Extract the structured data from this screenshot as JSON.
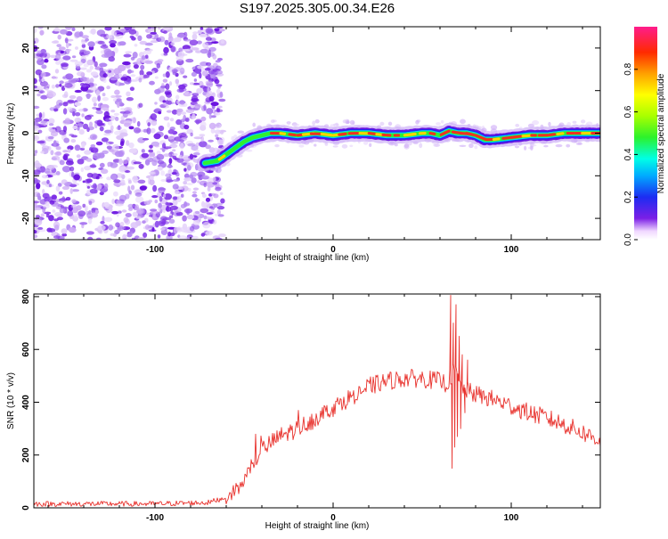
{
  "title": "S197.2025.305.00.34.E26",
  "chart_data": [
    {
      "type": "heatmap",
      "xlabel": "Height of straight line (km)",
      "ylabel": "Frequency (Hz)",
      "xlim": [
        -168,
        150
      ],
      "ylim": [
        -25,
        25
      ],
      "x_ticks": [
        -100,
        0,
        100
      ],
      "y_ticks": [
        -20,
        -10,
        0,
        10,
        20
      ],
      "noise_region_x": [
        -168,
        -65
      ],
      "ridge": {
        "x": [
          -72,
          -65,
          -60,
          -55,
          -50,
          -45,
          -40,
          -35,
          -30,
          -20,
          -10,
          0,
          10,
          20,
          30,
          40,
          50,
          55,
          60,
          65,
          70,
          75,
          80,
          85,
          90,
          100,
          110,
          120,
          130,
          140,
          150
        ],
        "freq": [
          -7,
          -6.5,
          -5,
          -3.5,
          -2,
          -1,
          -0.5,
          0,
          0,
          -0.5,
          0,
          -0.5,
          0,
          0,
          -0.5,
          -0.5,
          0,
          0,
          -0.5,
          0.5,
          0,
          0,
          -0.5,
          -1.5,
          -1.5,
          -1,
          -0.5,
          -0.5,
          0,
          0,
          0
        ]
      },
      "colorbar": {
        "label": "Normalized spectral amplitude",
        "range": [
          0,
          1
        ],
        "ticks": [
          "0.0",
          "0.2",
          "0.4",
          "0.6",
          "0.8"
        ]
      }
    },
    {
      "type": "line",
      "xlabel": "Height of straight line (km)",
      "ylabel": "SNR (10 * v/v)",
      "xlim": [
        -168,
        150
      ],
      "ylim": [
        0,
        810
      ],
      "x_ticks": [
        -100,
        0,
        100
      ],
      "y_ticks": [
        0,
        200,
        400,
        600,
        800
      ],
      "series": [
        {
          "color": "#e8312c",
          "envelope": {
            "x": [
              -168,
              -100,
              -70,
              -60,
              -52,
              -45,
              -40,
              -30,
              -20,
              -10,
              0,
              10,
              20,
              30,
              40,
              50,
              60,
              64,
              68,
              72,
              76,
              80,
              90,
              100,
              110,
              120,
              130,
              140,
              150
            ],
            "y": [
              15,
              15,
              20,
              40,
              80,
              170,
              220,
              270,
              300,
              340,
              380,
              420,
              460,
              480,
              490,
              490,
              480,
              470,
              520,
              460,
              440,
              430,
              410,
              385,
              360,
              340,
              315,
              285,
              255
            ]
          },
          "noise_amplitude": 35,
          "spikes": [
            {
              "x": 66.0,
              "y": 805
            },
            {
              "x": 66.8,
              "y": 150
            },
            {
              "x": 67.5,
              "y": 700
            },
            {
              "x": 68.3,
              "y": 230
            },
            {
              "x": 69.0,
              "y": 770
            },
            {
              "x": 69.8,
              "y": 270
            },
            {
              "x": 70.8,
              "y": 650
            },
            {
              "x": 71.6,
              "y": 300
            },
            {
              "x": 72.5,
              "y": 580
            },
            {
              "x": 74.0,
              "y": 360
            },
            {
              "x": 75.5,
              "y": 560
            }
          ]
        }
      ]
    }
  ]
}
